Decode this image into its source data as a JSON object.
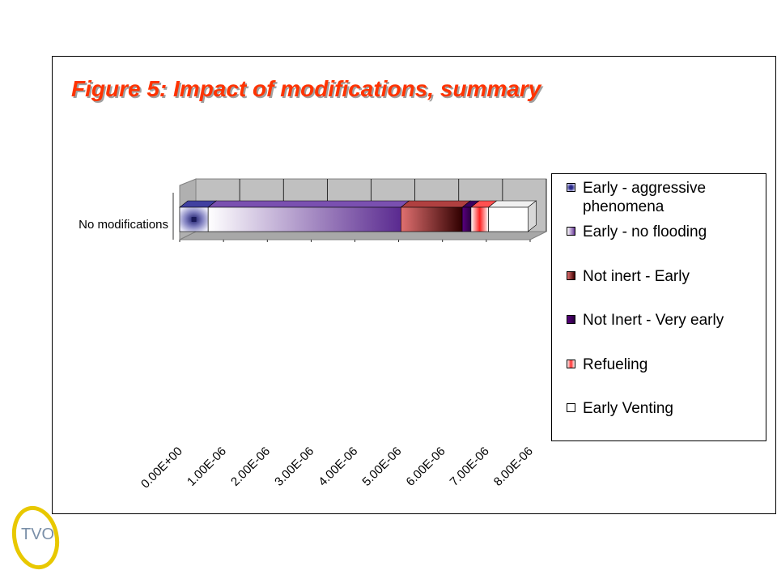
{
  "slide": {
    "logo_text": "TVO"
  },
  "chart_data": {
    "type": "bar",
    "orientation": "horizontal",
    "stacked": true,
    "title": "Figure 5: Impact of modifications, summary",
    "categories": [
      "No modifications"
    ],
    "series": [
      {
        "name": "Early - aggressive phenomena",
        "values": [
          6.5e-07
        ],
        "color": "#2a2a8a"
      },
      {
        "name": "Early - no flooding",
        "values": [
          4.4e-06
        ],
        "color": "#6a3a9a"
      },
      {
        "name": "Not inert - Early",
        "values": [
          1.4e-06
        ],
        "color": "#c05050"
      },
      {
        "name": "Not Inert - Very early",
        "values": [
          2e-07
        ],
        "color": "#4a0070"
      },
      {
        "name": "Refueling",
        "values": [
          4e-07
        ],
        "color": "#ff4040"
      },
      {
        "name": "Early Venting",
        "values": [
          9e-07
        ],
        "color": "#ffffff"
      }
    ],
    "x_ticks": [
      "0.00E+00",
      "1.00E-06",
      "2.00E-06",
      "3.00E-06",
      "4.00E-06",
      "5.00E-06",
      "6.00E-06",
      "7.00E-06",
      "8.00E-06"
    ],
    "xlim": [
      0,
      8e-06
    ],
    "grid": true,
    "legend_position": "right"
  }
}
